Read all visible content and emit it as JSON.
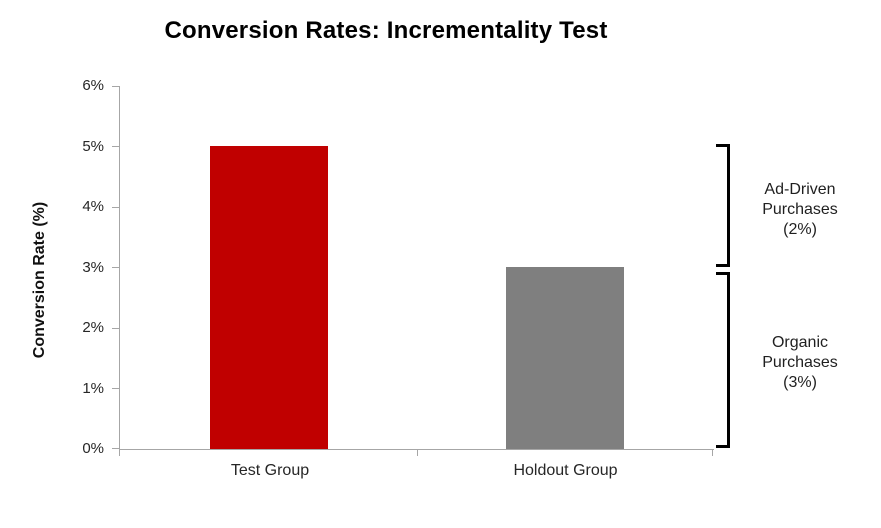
{
  "title": "Conversion Rates: Incrementality Test",
  "y_axis": {
    "label": "Conversion Rate (%)",
    "tick_labels": [
      "6%",
      "5%",
      "4%",
      "3%",
      "2%",
      "1%",
      "0%"
    ]
  },
  "x_axis": {
    "categories": [
      "Test Group",
      "Holdout Group"
    ]
  },
  "annotations": [
    {
      "text": "Ad-Driven\nPurchases\n(2%)"
    },
    {
      "text": "Organic\nPurchases\n(3%)"
    }
  ],
  "colors": {
    "test_bar": "#C00000",
    "holdout_bar": "#7F7F7F",
    "axis": "#A6A6A6",
    "bracket": "#000000",
    "text": "#262626"
  },
  "chart_data": {
    "type": "bar",
    "title": "Conversion Rates: Incrementality Test",
    "categories": [
      "Test Group",
      "Holdout Group"
    ],
    "values": [
      5,
      3
    ],
    "unit": "%",
    "xlabel": "",
    "ylabel": "Conversion Rate (%)",
    "ylim": [
      0,
      6
    ],
    "y_tick_step": 1,
    "grid": false,
    "legend": "none",
    "bar_colors": [
      "#C00000",
      "#7F7F7F"
    ],
    "annotations": [
      {
        "label": "Ad-Driven Purchases (2%)",
        "from_value": 3,
        "to_value": 5,
        "side": "right"
      },
      {
        "label": "Organic Purchases (3%)",
        "from_value": 0,
        "to_value": 3,
        "side": "right"
      }
    ]
  }
}
